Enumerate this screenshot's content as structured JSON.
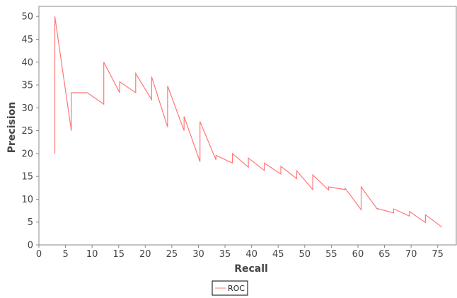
{
  "chart_data": {
    "type": "line",
    "xlabel": "Recall",
    "ylabel": "Precision",
    "xlim": [
      0,
      78.5
    ],
    "ylim": [
      0,
      52.2
    ],
    "xticks": [
      0,
      5,
      10,
      15,
      20,
      25,
      30,
      35,
      40,
      45,
      50,
      55,
      60,
      65,
      70,
      75
    ],
    "yticks": [
      0,
      5,
      10,
      15,
      20,
      25,
      30,
      35,
      40,
      45,
      50
    ],
    "grid": false,
    "legend_position": "bottom-center",
    "series": [
      {
        "name": "ROC",
        "color": "#ff7777",
        "x": [
          3.0,
          3.0,
          6.1,
          6.1,
          9.1,
          12.2,
          12.2,
          15.2,
          15.2,
          18.2,
          18.2,
          21.2,
          21.2,
          24.2,
          24.2,
          27.3,
          27.3,
          30.3,
          30.3,
          33.3,
          33.3,
          36.4,
          36.4,
          39.4,
          39.4,
          42.4,
          42.4,
          45.5,
          45.5,
          48.5,
          48.5,
          51.5,
          51.5,
          54.5,
          54.5,
          57.6,
          57.6,
          60.6,
          60.6,
          63.6,
          63.6,
          66.7,
          66.7,
          69.7,
          69.7,
          72.7,
          72.7,
          75.8
        ],
        "y": [
          20.0,
          50.0,
          25.0,
          33.3,
          33.3,
          30.8,
          40.0,
          33.3,
          35.7,
          33.3,
          37.5,
          31.8,
          36.8,
          25.8,
          34.8,
          25.0,
          28.1,
          18.2,
          27.0,
          18.6,
          19.6,
          17.9,
          20.0,
          17.0,
          19.0,
          16.3,
          17.9,
          15.5,
          17.2,
          14.5,
          16.2,
          12.1,
          15.3,
          12.0,
          12.7,
          12.1,
          12.4,
          7.7,
          12.7,
          7.9,
          8.0,
          7.0,
          7.9,
          6.3,
          7.3,
          4.9,
          6.6,
          3.9
        ]
      }
    ]
  }
}
